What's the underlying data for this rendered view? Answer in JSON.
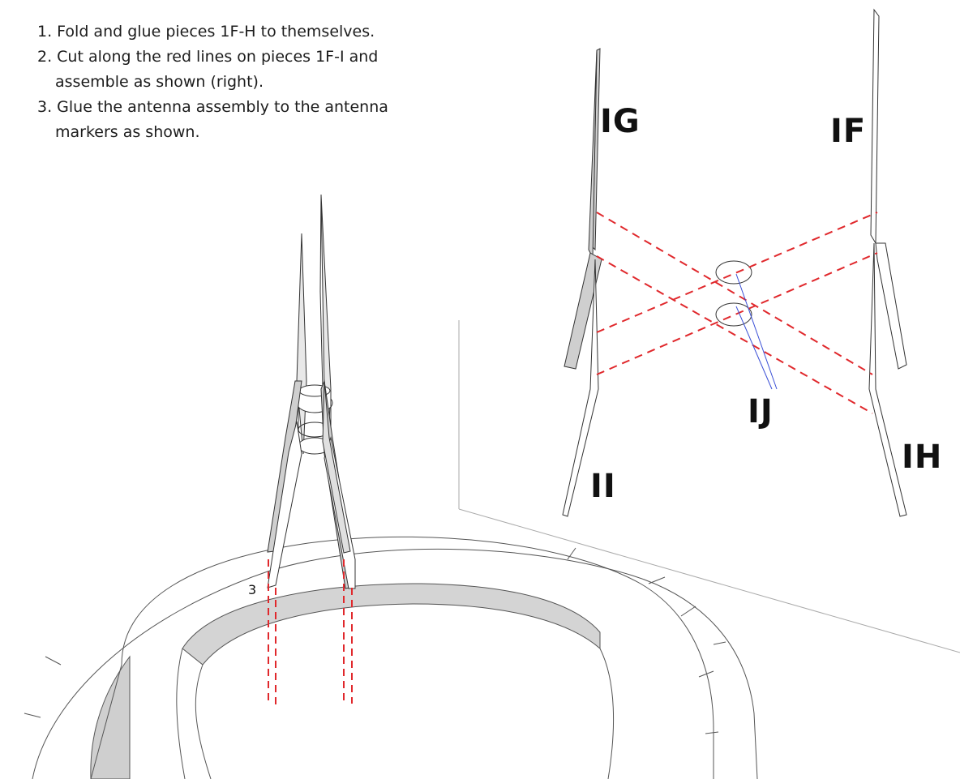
{
  "instructions": {
    "step1": "1. Fold and glue pieces 1F-H to themselves.",
    "step2_line1": "2. Cut along the red lines on pieces 1F-I and",
    "step2_line2": "assemble as shown (right).",
    "step3_line1": "3. Glue the antenna assembly to the antenna",
    "step3_line2": "markers as shown."
  },
  "labels": {
    "piece_ig": "IG",
    "piece_if": "IF",
    "piece_ij": "IJ",
    "piece_ih": "IH",
    "piece_ii": "II",
    "step_marker": "3"
  },
  "colors": {
    "cut_line": "#e0282c",
    "pointer_line": "#3a4fd6",
    "outline": "#333333",
    "shade": "#cfcfcf",
    "light_shade": "#eeeeee"
  }
}
